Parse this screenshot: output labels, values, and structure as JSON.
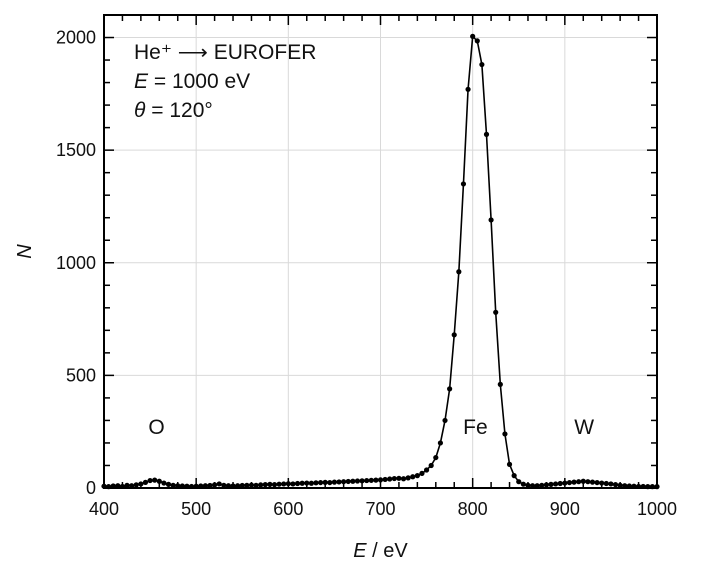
{
  "chart_data": {
    "type": "line",
    "xlabel_var": "E",
    "xlabel_unit": " / eV",
    "ylabel": "N",
    "xlim": [
      400,
      1000
    ],
    "ylim": [
      0,
      2100
    ],
    "xticks": [
      400,
      500,
      600,
      700,
      800,
      900,
      1000
    ],
    "yticks": [
      0,
      500,
      1000,
      1500,
      2000
    ],
    "grid": true,
    "annotations": {
      "line1": "He⁺ ⟶ EUROFER",
      "line2_var": "E",
      "line2_rest": " = 1000 eV",
      "line3_var": "θ",
      "line3_rest": " = 120°"
    },
    "peak_labels": [
      {
        "text": "O",
        "x": 457
      },
      {
        "text": "Fe",
        "x": 803
      },
      {
        "text": "W",
        "x": 921
      }
    ],
    "series": [
      {
        "x": [
          400,
          405,
          410,
          415,
          420,
          425,
          430,
          435,
          440,
          445,
          450,
          455,
          460,
          465,
          470,
          475,
          480,
          485,
          490,
          495,
          500,
          505,
          510,
          515,
          520,
          525,
          530,
          535,
          540,
          545,
          550,
          555,
          560,
          565,
          570,
          575,
          580,
          585,
          590,
          595,
          600,
          605,
          610,
          615,
          620,
          625,
          630,
          635,
          640,
          645,
          650,
          655,
          660,
          665,
          670,
          675,
          680,
          685,
          690,
          695,
          700,
          705,
          710,
          715,
          720,
          725,
          730,
          735,
          740,
          745,
          750,
          755,
          760,
          765,
          770,
          775,
          780,
          785,
          790,
          795,
          800,
          805,
          810,
          815,
          820,
          825,
          830,
          835,
          840,
          845,
          850,
          855,
          860,
          865,
          870,
          875,
          880,
          885,
          890,
          895,
          900,
          905,
          910,
          915,
          920,
          925,
          930,
          935,
          940,
          945,
          950,
          955,
          960,
          965,
          970,
          975,
          980,
          985,
          990,
          995,
          1000
        ],
        "y": [
          8,
          6,
          9,
          10,
          7,
          12,
          10,
          14,
          18,
          25,
          33,
          35,
          30,
          22,
          16,
          12,
          10,
          9,
          8,
          7,
          8,
          9,
          10,
          11,
          14,
          18,
          12,
          10,
          9,
          10,
          11,
          12,
          13,
          12,
          14,
          15,
          16,
          15,
          17,
          18,
          19,
          18,
          20,
          21,
          22,
          21,
          23,
          24,
          25,
          24,
          26,
          27,
          28,
          29,
          30,
          31,
          32,
          33,
          34,
          35,
          36,
          38,
          40,
          42,
          43,
          41,
          45,
          50,
          55,
          65,
          80,
          100,
          135,
          200,
          300,
          440,
          680,
          960,
          1350,
          1770,
          2005,
          1985,
          1880,
          1570,
          1190,
          780,
          460,
          240,
          105,
          55,
          28,
          17,
          12,
          10,
          10,
          12,
          14,
          16,
          18,
          20,
          22,
          24,
          26,
          28,
          30,
          28,
          26,
          24,
          22,
          20,
          18,
          15,
          12,
          10,
          9,
          8,
          7,
          7,
          6,
          6,
          6
        ]
      }
    ]
  }
}
